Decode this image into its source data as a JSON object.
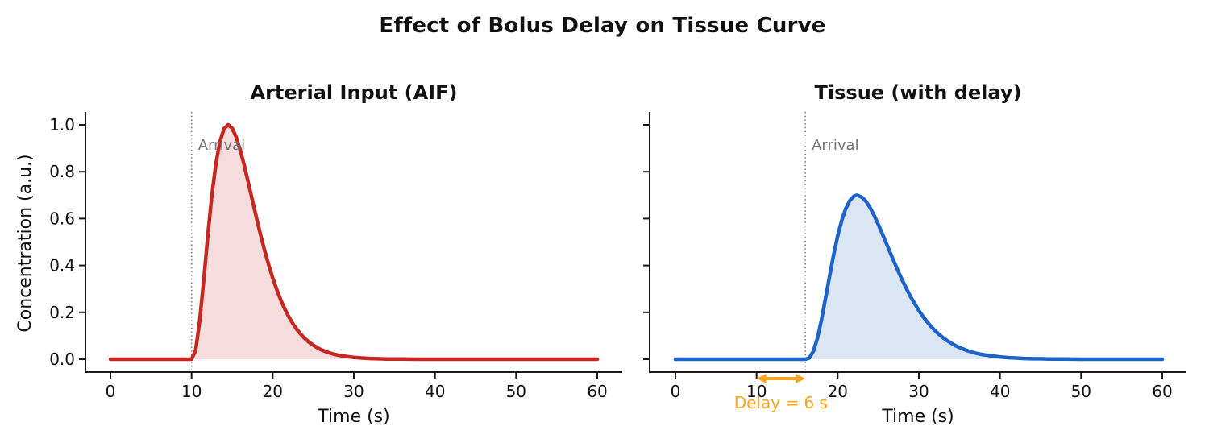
{
  "figure": {
    "title": "Effect of Bolus Delay on Tissue Curve"
  },
  "chart_data": [
    {
      "id": "aif",
      "type": "line",
      "title": "Arterial Input (AIF)",
      "xlabel": "Time (s)",
      "ylabel": "Concentration (a.u.)",
      "xlim": [
        -3,
        63
      ],
      "ylim": [
        -0.055,
        1.06
      ],
      "xticks": [
        0,
        10,
        20,
        30,
        40,
        50,
        60
      ],
      "yticks": [
        "0.0",
        "0.2",
        "0.4",
        "0.6",
        "0.8",
        "1.0"
      ],
      "show_ytick_labels": true,
      "grid": false,
      "legend": "none",
      "line_color": "#c42820",
      "fill_color": "#f6dcdc",
      "arrival": {
        "x": 10,
        "label": "Arrival",
        "line_color": "#7b7b7b",
        "label_color": "#737373"
      },
      "series": [
        {
          "name": "AIF",
          "points": [
            [
              0,
              0
            ],
            [
              2,
              0
            ],
            [
              4,
              0
            ],
            [
              6,
              0
            ],
            [
              8,
              0
            ],
            [
              9,
              0
            ],
            [
              9.5,
              0
            ],
            [
              10,
              0
            ],
            [
              10.5,
              0.038
            ],
            [
              11,
              0.163
            ],
            [
              11.5,
              0.339
            ],
            [
              12,
              0.528
            ],
            [
              12.5,
              0.699
            ],
            [
              13,
              0.835
            ],
            [
              13.5,
              0.93
            ],
            [
              14,
              0.983
            ],
            [
              14.5,
              1.0
            ],
            [
              15,
              0.986
            ],
            [
              15.5,
              0.948
            ],
            [
              16,
              0.892
            ],
            [
              16.5,
              0.826
            ],
            [
              17,
              0.753
            ],
            [
              17.5,
              0.677
            ],
            [
              18,
              0.603
            ],
            [
              18.5,
              0.532
            ],
            [
              19,
              0.464
            ],
            [
              19.5,
              0.403
            ],
            [
              20,
              0.347
            ],
            [
              20.5,
              0.297
            ],
            [
              21,
              0.252
            ],
            [
              21.5,
              0.214
            ],
            [
              22,
              0.18
            ],
            [
              22.5,
              0.151
            ],
            [
              23,
              0.126
            ],
            [
              23.5,
              0.105
            ],
            [
              24,
              0.087
            ],
            [
              24.5,
              0.072
            ],
            [
              25,
              0.06
            ],
            [
              25.5,
              0.049
            ],
            [
              26,
              0.04
            ],
            [
              26.5,
              0.033
            ],
            [
              27,
              0.027
            ],
            [
              27.5,
              0.022
            ],
            [
              28,
              0.018
            ],
            [
              29,
              0.012
            ],
            [
              30,
              0.008
            ],
            [
              31,
              0.005
            ],
            [
              32,
              0.003
            ],
            [
              33,
              0.002
            ],
            [
              34,
              0.001
            ],
            [
              35,
              0.001
            ],
            [
              36,
              0.001
            ],
            [
              38,
              0
            ],
            [
              40,
              0
            ],
            [
              44,
              0
            ],
            [
              48,
              0
            ],
            [
              52,
              0
            ],
            [
              56,
              0
            ],
            [
              60,
              0
            ]
          ]
        }
      ]
    },
    {
      "id": "tissue",
      "type": "line",
      "title": "Tissue (with delay)",
      "xlabel": "Time (s)",
      "ylabel": "",
      "xlim": [
        -3,
        63
      ],
      "ylim": [
        -0.055,
        1.06
      ],
      "xticks": [
        0,
        10,
        20,
        30,
        40,
        50,
        60
      ],
      "yticks": [
        "0.0",
        "0.2",
        "0.4",
        "0.6",
        "0.8",
        "1.0"
      ],
      "show_ytick_labels": false,
      "grid": false,
      "legend": "none",
      "line_color": "#1e64c8",
      "fill_color": "#dbe6f4",
      "arrival": {
        "x": 16,
        "label": "Arrival",
        "line_color": "#7b7b7b",
        "label_color": "#737373"
      },
      "delay_arrow": {
        "from_x": 10,
        "to_x": 16,
        "label": "Delay = 6 s",
        "color": "#ffa41e"
      },
      "series": [
        {
          "name": "Tissue",
          "points": [
            [
              0,
              0
            ],
            [
              4,
              0
            ],
            [
              8,
              0
            ],
            [
              10,
              0
            ],
            [
              12,
              0
            ],
            [
              14,
              0
            ],
            [
              15,
              0
            ],
            [
              16,
              0
            ],
            [
              16.5,
              0.005
            ],
            [
              17,
              0.034
            ],
            [
              17.5,
              0.09
            ],
            [
              18,
              0.168
            ],
            [
              18.5,
              0.26
            ],
            [
              19,
              0.355
            ],
            [
              19.5,
              0.446
            ],
            [
              20,
              0.526
            ],
            [
              20.5,
              0.593
            ],
            [
              21,
              0.643
            ],
            [
              21.5,
              0.677
            ],
            [
              22,
              0.696
            ],
            [
              22.4,
              0.7
            ],
            [
              23,
              0.691
            ],
            [
              23.5,
              0.673
            ],
            [
              24,
              0.646
            ],
            [
              24.5,
              0.613
            ],
            [
              25,
              0.575
            ],
            [
              25.5,
              0.535
            ],
            [
              26,
              0.494
            ],
            [
              26.5,
              0.452
            ],
            [
              27,
              0.412
            ],
            [
              27.5,
              0.372
            ],
            [
              28,
              0.334
            ],
            [
              28.5,
              0.299
            ],
            [
              29,
              0.266
            ],
            [
              29.5,
              0.236
            ],
            [
              30,
              0.208
            ],
            [
              30.5,
              0.183
            ],
            [
              31,
              0.16
            ],
            [
              31.5,
              0.14
            ],
            [
              32,
              0.122
            ],
            [
              32.5,
              0.105
            ],
            [
              33,
              0.091
            ],
            [
              33.5,
              0.079
            ],
            [
              34,
              0.068
            ],
            [
              34.5,
              0.058
            ],
            [
              35,
              0.05
            ],
            [
              35.5,
              0.043
            ],
            [
              36,
              0.036
            ],
            [
              36.5,
              0.031
            ],
            [
              37,
              0.026
            ],
            [
              37.5,
              0.022
            ],
            [
              38,
              0.019
            ],
            [
              39,
              0.014
            ],
            [
              40,
              0.01
            ],
            [
              41,
              0.007
            ],
            [
              42,
              0.005
            ],
            [
              43,
              0.003
            ],
            [
              44,
              0.002
            ],
            [
              45,
              0.002
            ],
            [
              46,
              0.001
            ],
            [
              47,
              0.001
            ],
            [
              48,
              0.001
            ],
            [
              50,
              0
            ],
            [
              52,
              0
            ],
            [
              54,
              0
            ],
            [
              56,
              0
            ],
            [
              58,
              0
            ],
            [
              60,
              0
            ]
          ]
        }
      ]
    }
  ]
}
